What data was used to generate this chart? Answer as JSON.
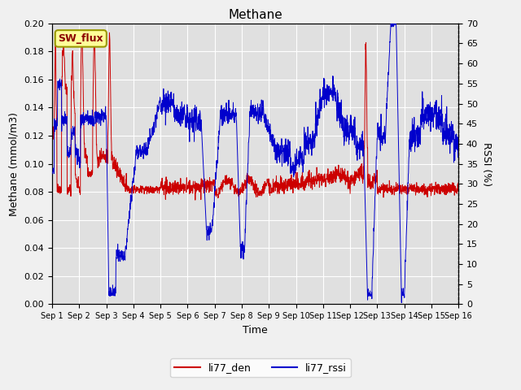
{
  "title": "Methane",
  "xlabel": "Time",
  "ylabel_left": "Methane (mmol/m3)",
  "ylabel_right": "RSSI (%)",
  "ylim_left": [
    0.0,
    0.2
  ],
  "ylim_right": [
    0,
    70
  ],
  "yticks_left": [
    0.0,
    0.02,
    0.04,
    0.06,
    0.08,
    0.1,
    0.12,
    0.14,
    0.16,
    0.18,
    0.2
  ],
  "yticks_right": [
    0,
    5,
    10,
    15,
    20,
    25,
    30,
    35,
    40,
    45,
    50,
    55,
    60,
    65,
    70
  ],
  "bg_color": "#e0e0e0",
  "fig_color": "#f0f0f0",
  "legend_label1": "li77_den",
  "legend_label2": "li77_rssi",
  "color_red": "#cc0000",
  "color_blue": "#0000cc",
  "annotation_text": "SW_flux",
  "annotation_bg": "#ffff99",
  "annotation_border": "#999900",
  "xtick_labels": [
    "Sep 1",
    "Sep 2",
    "Sep 3",
    "Sep 4",
    "Sep 5",
    "Sep 6",
    "Sep 7",
    "Sep 8",
    "Sep 9",
    "Sep 10",
    "Sep 11",
    "Sep 12",
    "Sep 13",
    "Sep 14",
    "Sep 15",
    "Sep 16"
  ]
}
